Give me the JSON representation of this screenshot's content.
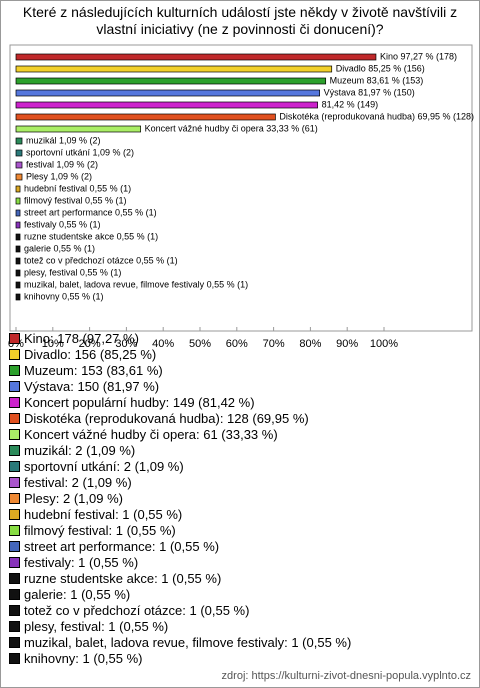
{
  "chart_data": {
    "type": "bar",
    "orientation": "horizontal",
    "title": "Které z následujících kulturních událostí jste někdy v životě navštívili z vlastní iniciativy (ne z povinnosti či donucení)?",
    "categories": [
      "Kino",
      "Divadlo",
      "Muzeum",
      "Výstava",
      "Koncert populární hudby",
      "Diskotéka (reprodukovaná hudba)",
      "Koncert vážné hudby či opera",
      "muzikál",
      "sportovní utkání",
      "festival",
      "Plesy",
      "hudební festival",
      "filmový festival",
      "street art performance",
      "festivaly",
      "ruzne studentske akce",
      "galerie",
      "totež co v předchozí otázce",
      "plesy, festival",
      "muzikal, balet, ladova revue, filmove festivaly",
      "knihovny"
    ],
    "values": [
      97.27,
      85.25,
      83.61,
      81.97,
      81.42,
      69.95,
      33.33,
      1.09,
      1.09,
      1.09,
      1.09,
      0.55,
      0.55,
      0.55,
      0.55,
      0.55,
      0.55,
      0.55,
      0.55,
      0.55,
      0.55
    ],
    "value_labels": [
      "Kino 97,27 % (178)",
      "Divadlo 85,25 % (156)",
      "Muzeum 83,61 % (153)",
      "Výstava 81,97 % (150)",
      "81,42 % (149)",
      "Diskotéka (reprodukovaná hudba) 69,95 % (128)",
      "Koncert vážné hudby či opera 33,33 % (61)",
      "muzikál 1,09 % (2)",
      "sportovní utkání 1,09 % (2)",
      "festival 1,09 % (2)",
      "Plesy 1,09 % (2)",
      "hudební festival 0,55 % (1)",
      "filmový festival 0,55 % (1)",
      "street art performance 0,55 % (1)",
      "festivaly 0,55 % (1)",
      "ruzne studentske akce 0,55 % (1)",
      "galerie 0,55 % (1)",
      "totež co v předchozí otázce 0,55 % (1)",
      "plesy, festival 0,55 % (1)",
      "muzikal, balet, ladova revue, filmove festivaly 0,55 % (1)",
      "knihovny 0,55 % (1)"
    ],
    "legend_labels": [
      "Kino: 178 (97,27 %)",
      "Divadlo: 156 (85,25 %)",
      "Muzeum: 153 (83,61 %)",
      "Výstava: 150 (81,97 %)",
      "Koncert populární hudby: 149 (81,42 %)",
      "Diskotéka (reprodukovaná hudba): 128 (69,95 %)",
      "Koncert vážné hudby či opera: 61 (33,33 %)",
      "muzikál: 2 (1,09 %)",
      "sportovní utkání: 2 (1,09 %)",
      "festival: 2 (1,09 %)",
      "Plesy: 2 (1,09 %)",
      "hudební festival: 1 (0,55 %)",
      "filmový festival: 1 (0,55 %)",
      "street art performance: 1 (0,55 %)",
      "festivaly: 1 (0,55 %)",
      "ruzne studentske akce: 1 (0,55 %)",
      "galerie: 1 (0,55 %)",
      "totež co v předchozí otázce: 1 (0,55 %)",
      "plesy, festival: 1 (0,55 %)",
      "muzikal, balet, ladova revue, filmove festivaly: 1 (0,55 %)",
      "knihovny: 1 (0,55 %)"
    ],
    "colors": [
      "#c0282a",
      "#f2d02a",
      "#2ca02c",
      "#5577dd",
      "#cc22cc",
      "#e05020",
      "#aaee66",
      "#2a8a5a",
      "#2a7a7a",
      "#aa55cc",
      "#ee8833",
      "#ddaa22",
      "#88dd44",
      "#4466bb",
      "#8833bb",
      "#111111",
      "#111111",
      "#111111",
      "#111111",
      "#111111",
      "#111111"
    ],
    "xlim": [
      0,
      100
    ],
    "xticks": [
      {
        "value": 0,
        "label": "0%"
      },
      {
        "value": 10,
        "label": "10%"
      },
      {
        "value": 20,
        "label": "20%"
      },
      {
        "value": 30,
        "label": "30%"
      },
      {
        "value": 40,
        "label": "40%"
      },
      {
        "value": 50,
        "label": "50%"
      },
      {
        "value": 60,
        "label": "60%"
      },
      {
        "value": 70,
        "label": "70%"
      },
      {
        "value": 80,
        "label": "80%"
      },
      {
        "value": 90,
        "label": "90%"
      },
      {
        "value": 100,
        "label": "100%"
      }
    ],
    "source": "zdroj: https://kulturni-zivot-dnesni-popula.vyplnto.cz"
  }
}
